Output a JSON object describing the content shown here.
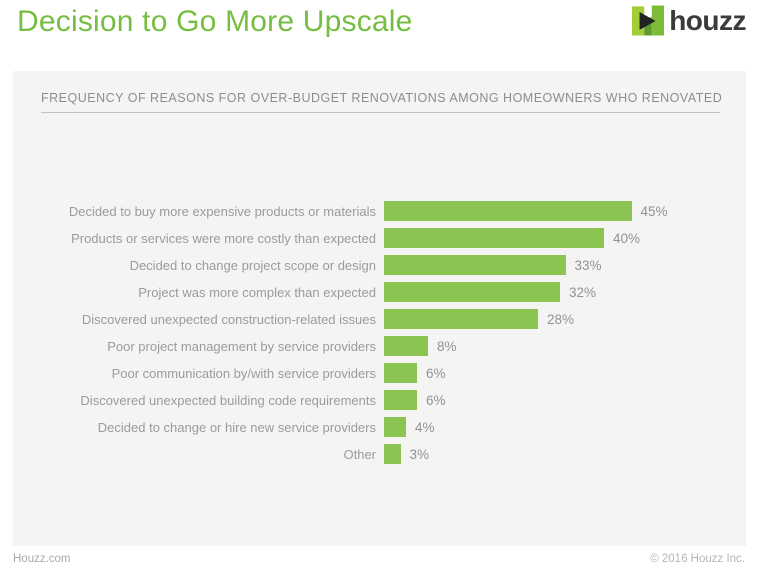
{
  "header": {
    "title": "Decision to Go More Upscale",
    "brand_wordmark": "houzz"
  },
  "panel": {
    "heading": "FREQUENCY OF REASONS FOR OVER-BUDGET RENOVATIONS AMONG HOMEOWNERS WHO RENOVATED"
  },
  "chart_data": {
    "type": "bar",
    "orientation": "horizontal",
    "title": "FREQUENCY OF REASONS FOR OVER-BUDGET RENOVATIONS AMONG HOMEOWNERS WHO RENOVATED",
    "categories": [
      "Decided to buy more expensive products or materials",
      "Products or services were more costly than expected",
      "Decided to change project scope or design",
      "Project was more complex than expected",
      "Discovered unexpected construction-related issues",
      "Poor project management by service providers",
      "Poor communication by/with service providers",
      "Discovered unexpected building code requirements",
      "Decided to change or hire new service providers",
      "Other"
    ],
    "values": [
      45,
      40,
      33,
      32,
      28,
      8,
      6,
      6,
      4,
      3
    ],
    "value_suffix": "%",
    "value_labels_position": "outside-end",
    "xlim": [
      0,
      50
    ],
    "grid": false,
    "legend": false,
    "bar_color": "#8cc454"
  },
  "footer": {
    "left": "Houzz.com",
    "right": "© 2016 Houzz Inc."
  },
  "colors": {
    "title_green": "#76be42",
    "bar_green": "#8cc454",
    "logo_light_green": "#a3cc39",
    "logo_green": "#7bbb35",
    "logo_dark_green": "#5d9b2d",
    "logo_black": "#222222",
    "panel_background": "#f4f4f3",
    "label_gray": "#9b9b9b",
    "heading_gray": "#8d8d8d",
    "footer_gray": "#b5b5b5"
  }
}
